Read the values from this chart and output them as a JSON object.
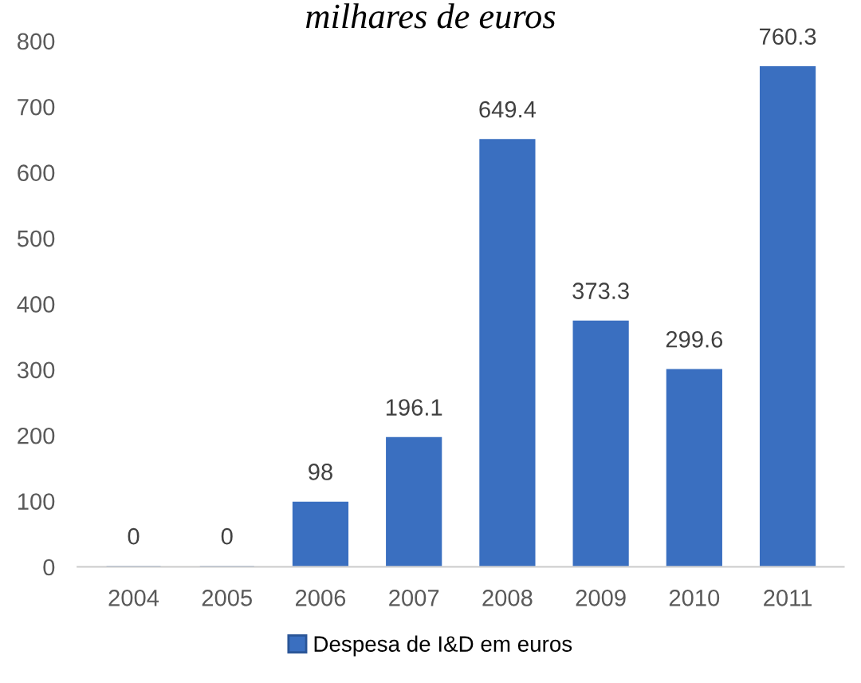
{
  "chart_data": {
    "type": "bar",
    "title": "milhares de euros",
    "categories": [
      "2004",
      "2005",
      "2006",
      "2007",
      "2008",
      "2009",
      "2010",
      "2011"
    ],
    "series": [
      {
        "name": "Despesa de I&D em euros",
        "color": "#3a6fc0",
        "values": [
          0,
          0,
          98,
          196.1,
          649.4,
          373.3,
          299.6,
          760.3
        ]
      }
    ],
    "ylim": [
      0,
      800
    ],
    "yticks": [
      0,
      100,
      200,
      300,
      400,
      500,
      600,
      700,
      800
    ],
    "grid": false,
    "legend": "bottom",
    "data_labels": true
  }
}
